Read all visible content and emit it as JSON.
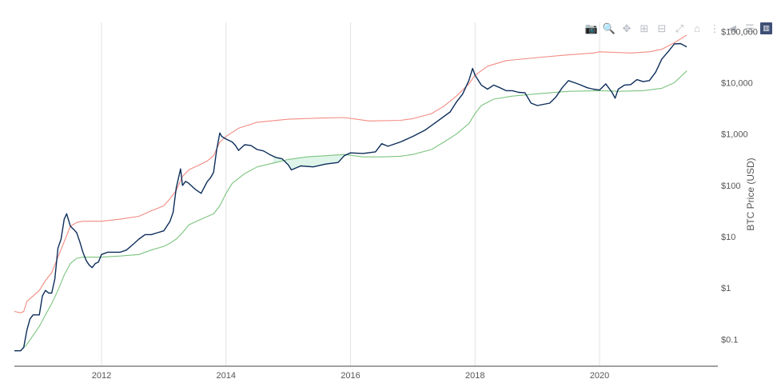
{
  "modebar": {
    "buttons": [
      {
        "name": "camera-icon",
        "glyph": "📷"
      },
      {
        "name": "zoom-icon",
        "glyph": "🔍"
      },
      {
        "name": "pan-icon",
        "glyph": "✥"
      },
      {
        "name": "zoom-in-icon",
        "glyph": "⊞"
      },
      {
        "name": "zoom-out-icon",
        "glyph": "⊟"
      },
      {
        "name": "autoscale-icon",
        "glyph": "⤢"
      },
      {
        "name": "home-icon",
        "glyph": "⌂"
      },
      {
        "name": "spike-lines-icon",
        "glyph": "⋮"
      },
      {
        "name": "hover-closest-icon",
        "glyph": "◀"
      },
      {
        "name": "hover-compare-icon",
        "glyph": "☰"
      },
      {
        "name": "plotly-logo-icon",
        "glyph": "▥"
      }
    ]
  },
  "chart_data": {
    "type": "line",
    "title": "",
    "xlabel": "",
    "ylabel": "BTC Price (USD)",
    "yscale": "log",
    "xlim": [
      2010.6,
      2021.9
    ],
    "ylim": [
      0.03,
      150000
    ],
    "x_ticks": [
      2012,
      2014,
      2016,
      2018,
      2020
    ],
    "x_tick_labels": [
      "2012",
      "2014",
      "2016",
      "2018",
      "2020"
    ],
    "y_ticks": [
      0.1,
      1,
      10,
      100,
      1000,
      10000,
      100000
    ],
    "y_tick_labels": [
      "$0.1",
      "$1",
      "$10",
      "$100",
      "$1,000",
      "$10,000",
      "$100,000"
    ],
    "grid": {
      "x": true,
      "y": false
    },
    "legend": "none",
    "colors": {
      "price": "#0c2d5a",
      "upper": "#f28b82",
      "lower": "#7cc47f",
      "fill": "#dff5ea"
    },
    "series": [
      {
        "key": "price",
        "x": [
          2010.6,
          2010.7,
          2010.75,
          2010.8,
          2010.85,
          2010.9,
          2011.0,
          2011.05,
          2011.1,
          2011.15,
          2011.2,
          2011.25,
          2011.3,
          2011.35,
          2011.4,
          2011.44,
          2011.5,
          2011.55,
          2011.6,
          2011.65,
          2011.7,
          2011.75,
          2011.8,
          2011.85,
          2011.9,
          2011.95,
          2012.0,
          2012.1,
          2012.2,
          2012.3,
          2012.4,
          2012.5,
          2012.6,
          2012.7,
          2012.8,
          2012.9,
          2013.0,
          2013.1,
          2013.15,
          2013.2,
          2013.27,
          2013.3,
          2013.35,
          2013.4,
          2013.5,
          2013.6,
          2013.7,
          2013.75,
          2013.8,
          2013.85,
          2013.9,
          2013.93,
          2014.0,
          2014.1,
          2014.15,
          2014.2,
          2014.3,
          2014.4,
          2014.5,
          2014.6,
          2014.7,
          2014.8,
          2014.9,
          2015.0,
          2015.05,
          2015.2,
          2015.4,
          2015.6,
          2015.8,
          2015.9,
          2016.0,
          2016.2,
          2016.4,
          2016.5,
          2016.6,
          2016.8,
          2017.0,
          2017.2,
          2017.4,
          2017.6,
          2017.7,
          2017.8,
          2017.9,
          2017.96,
          2018.0,
          2018.1,
          2018.2,
          2018.3,
          2018.4,
          2018.5,
          2018.6,
          2018.7,
          2018.8,
          2018.9,
          2019.0,
          2019.1,
          2019.2,
          2019.3,
          2019.4,
          2019.5,
          2019.6,
          2019.7,
          2019.8,
          2019.9,
          2020.0,
          2020.1,
          2020.2,
          2020.25,
          2020.3,
          2020.4,
          2020.5,
          2020.6,
          2020.7,
          2020.8,
          2020.9,
          2021.0,
          2021.1,
          2021.2,
          2021.3,
          2021.4
        ],
        "y": [
          0.06,
          0.06,
          0.07,
          0.15,
          0.25,
          0.3,
          0.3,
          0.7,
          0.9,
          0.8,
          0.8,
          1.5,
          6,
          9,
          22,
          28,
          16,
          14,
          12,
          8,
          5,
          3.5,
          2.8,
          2.5,
          3,
          3.2,
          4.5,
          5,
          5,
          5,
          5.5,
          7,
          9,
          11,
          11,
          12,
          13,
          20,
          30,
          90,
          210,
          100,
          120,
          110,
          85,
          70,
          120,
          140,
          180,
          500,
          1050,
          900,
          800,
          700,
          600,
          480,
          620,
          600,
          500,
          470,
          400,
          350,
          330,
          250,
          200,
          240,
          230,
          260,
          280,
          380,
          430,
          420,
          450,
          650,
          580,
          700,
          900,
          1200,
          1800,
          2700,
          4200,
          6000,
          11000,
          19000,
          14000,
          9000,
          7500,
          9000,
          8000,
          7000,
          7000,
          6500,
          6400,
          4000,
          3600,
          3800,
          4000,
          5300,
          8000,
          11000,
          10000,
          9000,
          8000,
          7500,
          7200,
          9500,
          6500,
          5000,
          7500,
          9000,
          9200,
          11500,
          10500,
          11000,
          16000,
          29000,
          40000,
          57000,
          58000,
          50000
        ]
      },
      {
        "key": "upper",
        "x": [
          2010.6,
          2010.7,
          2010.75,
          2010.8,
          2010.9,
          2011.0,
          2011.1,
          2011.2,
          2011.3,
          2011.4,
          2011.5,
          2011.6,
          2011.7,
          2011.8,
          2012.0,
          2012.3,
          2012.6,
          2012.8,
          2013.0,
          2013.1,
          2013.2,
          2013.3,
          2013.4,
          2013.5,
          2013.6,
          2013.7,
          2013.8,
          2013.9,
          2014.0,
          2014.2,
          2014.5,
          2015.0,
          2015.5,
          2015.9,
          2016.3,
          2016.8,
          2017.0,
          2017.3,
          2017.5,
          2017.7,
          2017.9,
          2018.0,
          2018.2,
          2018.5,
          2019.0,
          2019.5,
          2019.9,
          2020.0,
          2020.5,
          2020.8,
          2021.0,
          2021.2,
          2021.4
        ],
        "y": [
          0.35,
          0.33,
          0.35,
          0.55,
          0.7,
          0.9,
          1.4,
          2,
          4,
          8,
          16,
          19,
          20,
          20,
          20,
          22,
          25,
          32,
          40,
          55,
          80,
          150,
          200,
          230,
          260,
          300,
          380,
          700,
          900,
          1300,
          1700,
          1950,
          2050,
          2100,
          1800,
          1850,
          2000,
          2500,
          3500,
          5500,
          9500,
          14000,
          21000,
          27000,
          31000,
          35000,
          38000,
          40000,
          38000,
          40000,
          45000,
          60000,
          85000
        ]
      },
      {
        "key": "lower",
        "x": [
          2010.7,
          2010.8,
          2010.9,
          2011.0,
          2011.1,
          2011.2,
          2011.3,
          2011.4,
          2011.5,
          2011.6,
          2011.7,
          2011.8,
          2012.0,
          2012.3,
          2012.6,
          2012.8,
          2013.0,
          2013.1,
          2013.2,
          2013.3,
          2013.4,
          2013.6,
          2013.8,
          2013.9,
          2014.0,
          2014.1,
          2014.3,
          2014.5,
          2014.8,
          2015.0,
          2015.3,
          2015.6,
          2015.9,
          2016.2,
          2016.5,
          2016.8,
          2017.0,
          2017.3,
          2017.5,
          2017.7,
          2017.9,
          2018.0,
          2018.1,
          2018.3,
          2018.6,
          2019.0,
          2019.5,
          2020.0,
          2020.3,
          2020.7,
          2021.0,
          2021.2,
          2021.4
        ],
        "y": [
          0.06,
          0.08,
          0.12,
          0.18,
          0.3,
          0.5,
          0.9,
          1.8,
          3,
          3.8,
          4,
          4,
          4,
          4.2,
          4.5,
          5.5,
          6.5,
          7.5,
          9,
          12,
          17,
          22,
          28,
          40,
          70,
          110,
          170,
          230,
          280,
          320,
          360,
          380,
          400,
          360,
          360,
          370,
          400,
          500,
          700,
          1000,
          1600,
          2500,
          3600,
          4800,
          5500,
          6100,
          6800,
          7000,
          6800,
          7000,
          7800,
          10000,
          17000
        ]
      }
    ]
  }
}
